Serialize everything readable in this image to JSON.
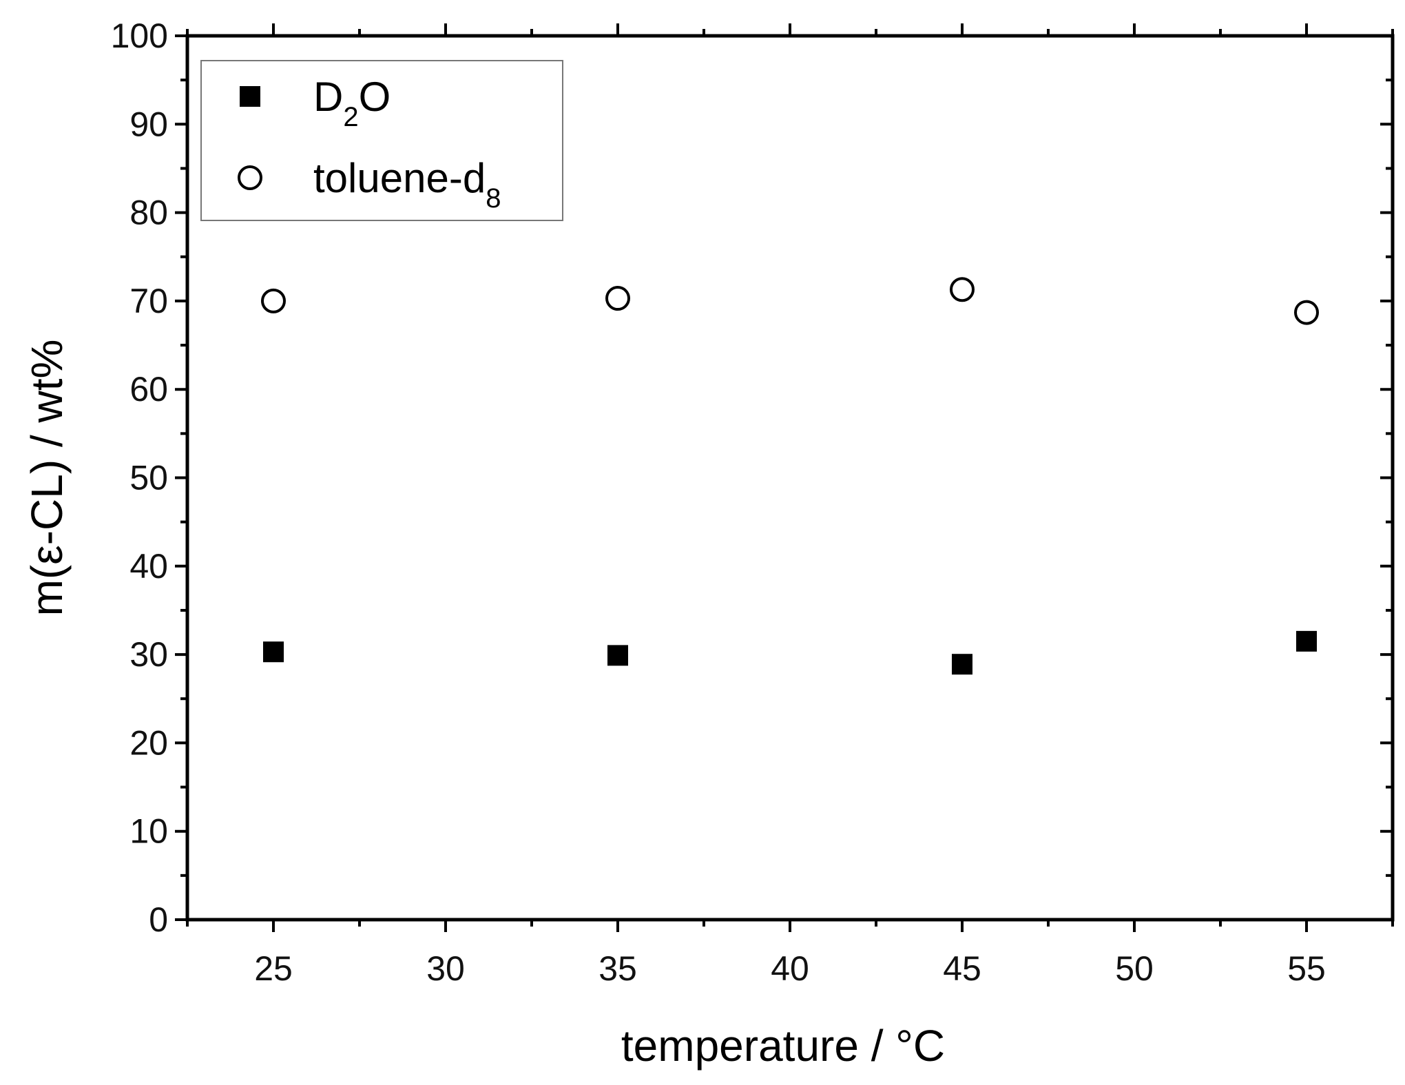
{
  "chart_data": {
    "type": "scatter",
    "xlabel": "temperature / °C",
    "ylabel": "m(ε-CL) / wt%",
    "xlim": [
      22.5,
      57.5
    ],
    "ylim": [
      0,
      100
    ],
    "x_ticks": [
      25,
      30,
      35,
      40,
      45,
      50,
      55
    ],
    "y_ticks": [
      0,
      10,
      20,
      30,
      40,
      50,
      60,
      70,
      80,
      90,
      100
    ],
    "grid": false,
    "legend_position": "top-left",
    "series": [
      {
        "name": "D2O",
        "legend_label": {
          "main": "D",
          "sub": "2",
          "tail": "O"
        },
        "marker": "filled-square",
        "color": "#000000",
        "x": [
          25,
          35,
          45,
          55
        ],
        "y": [
          30.3,
          29.9,
          28.9,
          31.5
        ]
      },
      {
        "name": "toluene-d8",
        "legend_label": {
          "main": "toluene-d",
          "sub": "8",
          "tail": ""
        },
        "marker": "open-circle",
        "color": "#000000",
        "x": [
          25,
          35,
          45,
          55
        ],
        "y": [
          70.0,
          70.3,
          71.3,
          68.7
        ]
      }
    ]
  }
}
